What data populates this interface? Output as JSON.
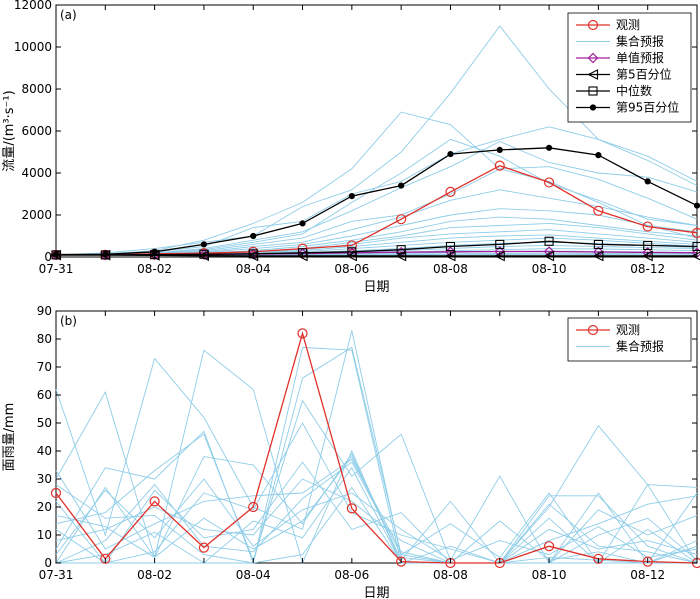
{
  "chart_data": [
    {
      "type": "line",
      "panel_label": "(a)",
      "xlabel": "日期",
      "ylabel": "流量/(m³·s⁻¹)",
      "xlim": [
        0,
        13
      ],
      "ylim": [
        0,
        12000
      ],
      "yticks": [
        0,
        2000,
        4000,
        6000,
        8000,
        10000,
        12000
      ],
      "xtick_positions": [
        0,
        2,
        4,
        6,
        8,
        10,
        12
      ],
      "xtick_labels": [
        "07-31",
        "08-02",
        "08-04",
        "08-06",
        "08-08",
        "08-10",
        "08-12"
      ],
      "legend_position": "top-right",
      "colors": {
        "observed": "#e0302a",
        "ensemble": "#8fcde8",
        "single": "#a0209a",
        "quantile": "#000000"
      },
      "series": [
        {
          "name": "观测",
          "role": "observed",
          "marker": "circle",
          "values": [
            100,
            100,
            150,
            180,
            250,
            400,
            550,
            1800,
            3100,
            4350,
            3550,
            2200,
            1450,
            1150
          ]
        },
        {
          "name": "集合预报",
          "role": "ensemble",
          "marker": "none",
          "values": null
        },
        {
          "name": "单值预报",
          "role": "single",
          "marker": "diamond",
          "values": [
            100,
            100,
            110,
            120,
            140,
            160,
            200,
            230,
            250,
            260,
            260,
            240,
            220,
            200
          ]
        },
        {
          "name": "第5百分位",
          "role": "quantile",
          "marker": "triangle-left",
          "values": [
            90,
            90,
            80,
            60,
            50,
            50,
            50,
            50,
            50,
            50,
            50,
            50,
            50,
            50
          ]
        },
        {
          "name": "中位数",
          "role": "quantile",
          "marker": "square",
          "values": [
            100,
            100,
            110,
            130,
            150,
            200,
            250,
            350,
            500,
            600,
            750,
            600,
            550,
            500
          ]
        },
        {
          "name": "第95百分位",
          "role": "quantile",
          "marker": "dot",
          "values": [
            120,
            130,
            250,
            600,
            1000,
            1600,
            2900,
            3400,
            4900,
            5100,
            5200,
            4850,
            3600,
            2450
          ]
        }
      ],
      "ensemble_members": [
        [
          100,
          200,
          400,
          700,
          1000,
          2400,
          3200,
          5000,
          7800,
          11000,
          8000,
          5600,
          4800,
          3600
        ],
        [
          100,
          150,
          300,
          800,
          1600,
          2600,
          4200,
          6900,
          6300,
          4200,
          3600,
          2600,
          1500,
          1200
        ],
        [
          100,
          150,
          250,
          500,
          1400,
          1700,
          3000,
          3600,
          4900,
          5600,
          6200,
          5600,
          4600,
          3400
        ],
        [
          100,
          130,
          200,
          400,
          800,
          1200,
          2200,
          3300,
          4300,
          5500,
          4500,
          4000,
          3800,
          3100
        ],
        [
          100,
          120,
          180,
          300,
          600,
          900,
          1700,
          2000,
          3000,
          4200,
          4300,
          3700,
          2800,
          1800
        ],
        [
          100,
          110,
          160,
          250,
          500,
          700,
          1300,
          1900,
          2700,
          3200,
          2800,
          2400,
          1900,
          1500
        ],
        [
          100,
          110,
          150,
          220,
          400,
          600,
          1000,
          1500,
          2000,
          2300,
          2200,
          2000,
          1500,
          900
        ],
        [
          100,
          100,
          140,
          200,
          300,
          500,
          800,
          1200,
          1700,
          1900,
          1800,
          1500,
          1200,
          1000
        ],
        [
          100,
          100,
          130,
          180,
          250,
          400,
          700,
          1000,
          1400,
          1500,
          1600,
          1400,
          1100,
          800
        ],
        [
          100,
          100,
          120,
          160,
          220,
          350,
          600,
          900,
          1100,
          1200,
          1300,
          1100,
          900,
          700
        ],
        [
          100,
          100,
          110,
          150,
          200,
          300,
          500,
          700,
          900,
          1000,
          1050,
          900,
          750,
          600
        ],
        [
          100,
          100,
          100,
          130,
          180,
          250,
          400,
          550,
          700,
          800,
          900,
          800,
          650,
          500
        ],
        [
          100,
          100,
          100,
          120,
          150,
          200,
          300,
          400,
          550,
          650,
          700,
          650,
          550,
          450
        ],
        [
          100,
          100,
          100,
          110,
          130,
          160,
          220,
          300,
          400,
          500,
          550,
          500,
          450,
          400
        ],
        [
          100,
          100,
          90,
          100,
          110,
          130,
          180,
          220,
          300,
          350,
          400,
          380,
          350,
          300
        ],
        [
          100,
          100,
          90,
          90,
          100,
          110,
          140,
          170,
          220,
          260,
          280,
          260,
          240,
          220
        ],
        [
          100,
          100,
          80,
          80,
          90,
          100,
          110,
          120,
          150,
          170,
          180,
          170,
          160,
          150
        ],
        [
          100,
          100,
          80,
          70,
          70,
          80,
          90,
          100,
          110,
          120,
          130,
          120,
          110,
          100
        ],
        [
          100,
          100,
          200,
          350,
          700,
          1100,
          2600,
          4000,
          5600,
          4800,
          3500,
          2700,
          1800,
          1500
        ]
      ]
    },
    {
      "type": "line",
      "panel_label": "(b)",
      "xlabel": "日期",
      "ylabel": "面雨量/mm",
      "xlim": [
        0,
        13
      ],
      "ylim": [
        0,
        90
      ],
      "yticks": [
        0,
        10,
        20,
        30,
        40,
        50,
        60,
        70,
        80,
        90
      ],
      "xtick_positions": [
        0,
        2,
        4,
        6,
        8,
        10,
        12
      ],
      "xtick_labels": [
        "07-31",
        "08-02",
        "08-04",
        "08-06",
        "08-08",
        "08-10",
        "08-12"
      ],
      "legend_position": "top-right",
      "colors": {
        "observed": "#e0302a",
        "ensemble": "#8fcde8"
      },
      "series": [
        {
          "name": "观测",
          "role": "observed",
          "marker": "circle",
          "values": [
            25,
            1.5,
            22,
            5.5,
            20,
            82,
            19.5,
            0.5,
            0,
            0,
            6,
            1.5,
            0.5,
            0
          ]
        },
        {
          "name": "集合预报",
          "role": "ensemble",
          "marker": "none",
          "values": null
        }
      ],
      "ensemble_members": [
        [
          62,
          10,
          73,
          52,
          20,
          12,
          83,
          2,
          0,
          0,
          2,
          1,
          0,
          0
        ],
        [
          30,
          61,
          2,
          76,
          62,
          0,
          40,
          0,
          0,
          0,
          20,
          49,
          28,
          0
        ],
        [
          5,
          34,
          30,
          47,
          0,
          66,
          77,
          3,
          14,
          2,
          25,
          0,
          28,
          27
        ],
        [
          14,
          18,
          33,
          46,
          1,
          58,
          31,
          46,
          1,
          31,
          0,
          0,
          0,
          25
        ],
        [
          0,
          27,
          2,
          38,
          35,
          14,
          39,
          0,
          6,
          0,
          24,
          24,
          6,
          0
        ],
        [
          22,
          0,
          26,
          9,
          12,
          36,
          12,
          18,
          0,
          0,
          0,
          25,
          0,
          8
        ],
        [
          0,
          0,
          0,
          0,
          0,
          77,
          76,
          0,
          0,
          0,
          0,
          0,
          0,
          0
        ],
        [
          33,
          5,
          14,
          22,
          24,
          25,
          37,
          4,
          0,
          0,
          8,
          14,
          21,
          24
        ],
        [
          8,
          12,
          20,
          12,
          10,
          30,
          22,
          8,
          0,
          0,
          12,
          5,
          8,
          3
        ],
        [
          3,
          26,
          9,
          30,
          6,
          19,
          25,
          12,
          1,
          8,
          3,
          13,
          2,
          5
        ],
        [
          17,
          13,
          2,
          16,
          5,
          15,
          38,
          1,
          22,
          0,
          16,
          0,
          12,
          0
        ],
        [
          0,
          3,
          11,
          0,
          15,
          9,
          34,
          0,
          0,
          0,
          0,
          19,
          10,
          17
        ],
        [
          0,
          8,
          28,
          6,
          4,
          23,
          36,
          3,
          0,
          15,
          1,
          4,
          0,
          6
        ],
        [
          12,
          0,
          4,
          25,
          19,
          50,
          18,
          10,
          5,
          0,
          21,
          6,
          4,
          0
        ],
        [
          28,
          16,
          17,
          3,
          0,
          3,
          27,
          0,
          0,
          0,
          0,
          10,
          16,
          1
        ]
      ]
    }
  ]
}
